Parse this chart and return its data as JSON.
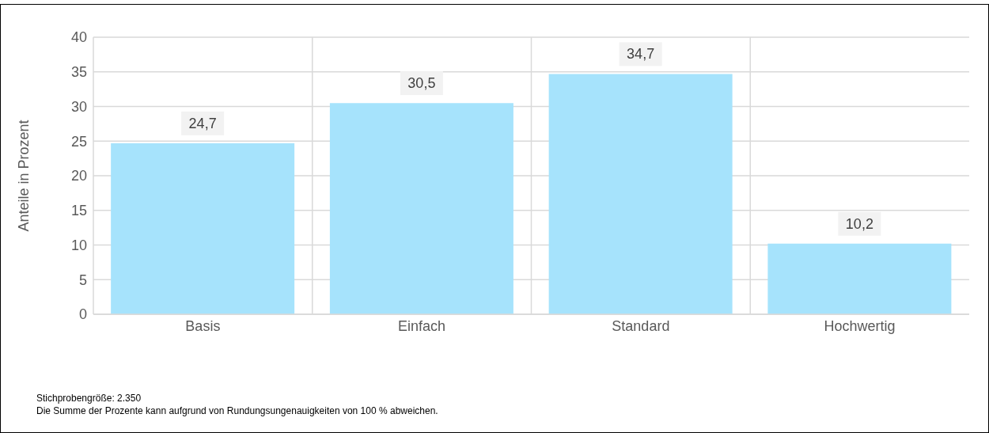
{
  "chart_data": {
    "type": "bar",
    "ylabel": "Anteile in Prozent",
    "categories": [
      "Basis",
      "Einfach",
      "Standard",
      "Hochwertig"
    ],
    "values": [
      24.7,
      30.5,
      34.7,
      10.2
    ],
    "color": "#a6e3fc",
    "ylim": [
      0,
      40
    ],
    "yticks": [
      0,
      5,
      10,
      15,
      20,
      25,
      30,
      35,
      40
    ],
    "grid": true,
    "value_labels": [
      "24,7",
      "30,5",
      "34,7",
      "10,2"
    ],
    "annotations": [
      "Stichprobengröße: 2.350",
      "Die Summe der Prozente kann aufgrund von Rundungsungenauigkeiten von 100 % abweichen."
    ]
  }
}
